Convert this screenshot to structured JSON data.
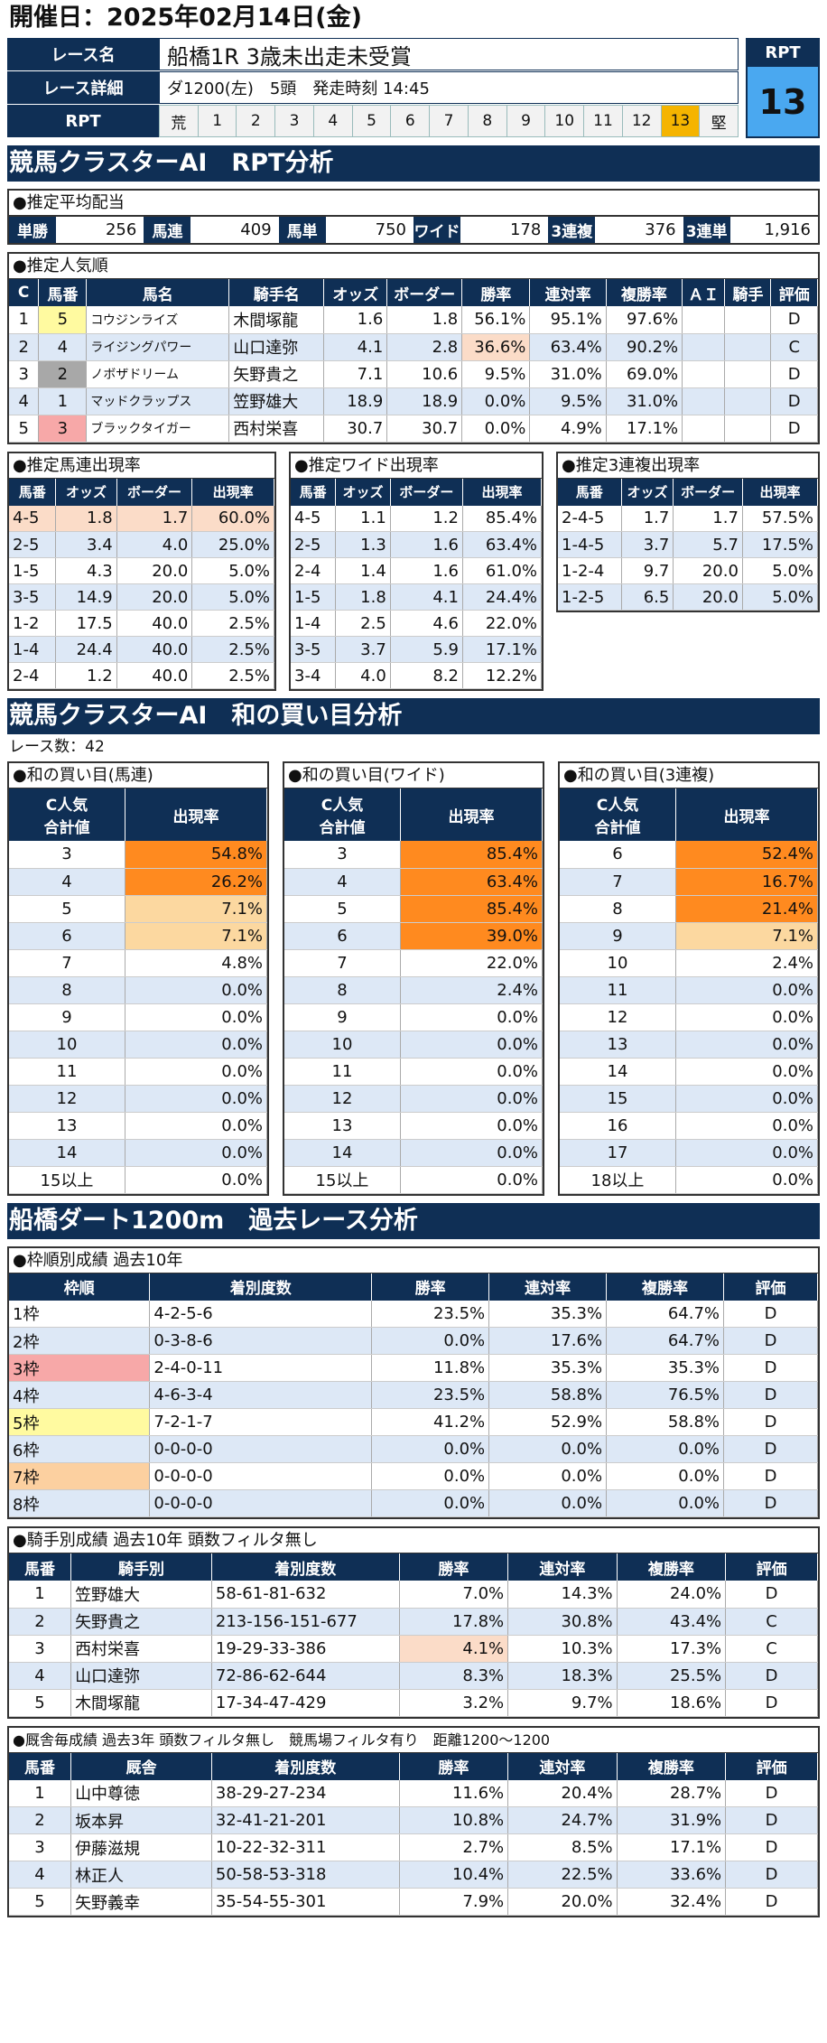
{
  "date": "開催日：2025年02月14日(金)",
  "race": {
    "label_name": "レース名",
    "name": "船橋1R 3歳未出走未受賞",
    "label_detail": "レース詳細",
    "detail": "ダ1200(左)　5頭　発走時刻 14:45",
    "label_rpt": "RPT",
    "scale_left": "荒",
    "scale": [
      "1",
      "2",
      "3",
      "4",
      "5",
      "6",
      "7",
      "8",
      "9",
      "10",
      "11",
      "12",
      "13"
    ],
    "scale_right": "堅",
    "rpt_title": "RPT",
    "rpt_value": "13",
    "rpt_selected": 13
  },
  "sec1": "競馬クラスターAI　RPT分析",
  "payout": {
    "title": "●推定平均配当",
    "items": [
      {
        "l": "単勝",
        "v": "256"
      },
      {
        "l": "馬連",
        "v": "409"
      },
      {
        "l": "馬単",
        "v": "750"
      },
      {
        "l": "ワイド",
        "v": "178"
      },
      {
        "l": "3連複",
        "v": "376"
      },
      {
        "l": "3連単",
        "v": "1,916"
      }
    ]
  },
  "pop": {
    "title": "●推定人気順",
    "headers": [
      "C",
      "馬番",
      "馬名",
      "騎手名",
      "オッズ",
      "ボーダー",
      "勝率",
      "連対率",
      "複勝率",
      "ＡＩ",
      "騎手",
      "評価"
    ],
    "rows": [
      [
        "1",
        "5",
        "コウジンライズ",
        "木間塚龍",
        "1.6",
        "1.8",
        "56.1%",
        "95.1%",
        "97.6%",
        "",
        "",
        "D"
      ],
      [
        "2",
        "4",
        "ライジングパワー",
        "山口達弥",
        "4.1",
        "2.8",
        "36.6%",
        "63.4%",
        "90.2%",
        "",
        "",
        "C"
      ],
      [
        "3",
        "2",
        "ノボザドリーム",
        "矢野貴之",
        "7.1",
        "10.6",
        "9.5%",
        "31.0%",
        "69.0%",
        "",
        "",
        "D"
      ],
      [
        "4",
        "1",
        "マッドクラップス",
        "笠野雄大",
        "18.9",
        "18.9",
        "0.0%",
        "9.5%",
        "31.0%",
        "",
        "",
        "D"
      ],
      [
        "5",
        "3",
        "ブラックタイガー",
        "西村栄喜",
        "30.7",
        "30.7",
        "0.0%",
        "4.9%",
        "17.1%",
        "",
        "",
        "D"
      ]
    ]
  },
  "umaren": {
    "title": "●推定馬連出現率",
    "headers": [
      "馬番",
      "オッズ",
      "ボーダー",
      "出現率"
    ],
    "rows": [
      [
        "4-5",
        "1.8",
        "1.7",
        "60.0%"
      ],
      [
        "2-5",
        "3.4",
        "4.0",
        "25.0%"
      ],
      [
        "1-5",
        "4.3",
        "20.0",
        "5.0%"
      ],
      [
        "3-5",
        "14.9",
        "20.0",
        "5.0%"
      ],
      [
        "1-2",
        "17.5",
        "40.0",
        "2.5%"
      ],
      [
        "1-4",
        "24.4",
        "40.0",
        "2.5%"
      ],
      [
        "2-4",
        "1.2",
        "40.0",
        "2.5%"
      ]
    ]
  },
  "wide": {
    "title": "●推定ワイド出現率",
    "headers": [
      "馬番",
      "オッズ",
      "ボーダー",
      "出現率"
    ],
    "rows": [
      [
        "4-5",
        "1.1",
        "1.2",
        "85.4%"
      ],
      [
        "2-5",
        "1.3",
        "1.6",
        "63.4%"
      ],
      [
        "2-4",
        "1.4",
        "1.6",
        "61.0%"
      ],
      [
        "1-5",
        "1.8",
        "4.1",
        "24.4%"
      ],
      [
        "1-4",
        "2.5",
        "4.6",
        "22.0%"
      ],
      [
        "3-5",
        "3.7",
        "5.9",
        "17.1%"
      ],
      [
        "3-4",
        "4.0",
        "8.2",
        "12.2%"
      ]
    ]
  },
  "trio": {
    "title": "●推定3連複出現率",
    "headers": [
      "馬番",
      "オッズ",
      "ボーダー",
      "出現率"
    ],
    "rows": [
      [
        "2-4-5",
        "1.7",
        "1.7",
        "57.5%"
      ],
      [
        "1-4-5",
        "3.7",
        "5.7",
        "17.5%"
      ],
      [
        "1-2-4",
        "9.7",
        "20.0",
        "5.0%"
      ],
      [
        "1-2-5",
        "6.5",
        "20.0",
        "5.0%"
      ]
    ]
  },
  "sec2": "競馬クラスターAI　和の買い目分析",
  "race_count": "レース数：42",
  "sum1": {
    "title": "●和の買い目(馬連)",
    "h1": "C人気",
    "h2": "合計値",
    "h3": "出現率",
    "rows": [
      [
        "3",
        "54.8%"
      ],
      [
        "4",
        "26.2%"
      ],
      [
        "5",
        "7.1%"
      ],
      [
        "6",
        "7.1%"
      ],
      [
        "7",
        "4.8%"
      ],
      [
        "8",
        "0.0%"
      ],
      [
        "9",
        "0.0%"
      ],
      [
        "10",
        "0.0%"
      ],
      [
        "11",
        "0.0%"
      ],
      [
        "12",
        "0.0%"
      ],
      [
        "13",
        "0.0%"
      ],
      [
        "14",
        "0.0%"
      ],
      [
        "15以上",
        "0.0%"
      ]
    ]
  },
  "sum2": {
    "title": "●和の買い目(ワイド)",
    "h1": "C人気",
    "h2": "合計値",
    "h3": "出現率",
    "rows": [
      [
        "3",
        "85.4%"
      ],
      [
        "4",
        "63.4%"
      ],
      [
        "5",
        "85.4%"
      ],
      [
        "6",
        "39.0%"
      ],
      [
        "7",
        "22.0%"
      ],
      [
        "8",
        "2.4%"
      ],
      [
        "9",
        "0.0%"
      ],
      [
        "10",
        "0.0%"
      ],
      [
        "11",
        "0.0%"
      ],
      [
        "12",
        "0.0%"
      ],
      [
        "13",
        "0.0%"
      ],
      [
        "14",
        "0.0%"
      ],
      [
        "15以上",
        "0.0%"
      ]
    ]
  },
  "sum3": {
    "title": "●和の買い目(3連複)",
    "h1": "C人気",
    "h2": "合計値",
    "h3": "出現率",
    "rows": [
      [
        "6",
        "52.4%"
      ],
      [
        "7",
        "16.7%"
      ],
      [
        "8",
        "21.4%"
      ],
      [
        "9",
        "7.1%"
      ],
      [
        "10",
        "2.4%"
      ],
      [
        "11",
        "0.0%"
      ],
      [
        "12",
        "0.0%"
      ],
      [
        "13",
        "0.0%"
      ],
      [
        "14",
        "0.0%"
      ],
      [
        "15",
        "0.0%"
      ],
      [
        "16",
        "0.0%"
      ],
      [
        "17",
        "0.0%"
      ],
      [
        "18以上",
        "0.0%"
      ]
    ]
  },
  "sec3": "船橋ダート1200m　過去レース分析",
  "frame": {
    "title": "●枠順別成績 過去10年",
    "headers": [
      "枠順",
      "着別度数",
      "勝率",
      "連対率",
      "複勝率",
      "評価"
    ],
    "rows": [
      [
        "1枠",
        "4-2-5-6",
        "23.5%",
        "35.3%",
        "64.7%",
        "D"
      ],
      [
        "2枠",
        "0-3-8-6",
        "0.0%",
        "17.6%",
        "64.7%",
        "D"
      ],
      [
        "3枠",
        "2-4-0-11",
        "11.8%",
        "35.3%",
        "35.3%",
        "D"
      ],
      [
        "4枠",
        "4-6-3-4",
        "23.5%",
        "58.8%",
        "76.5%",
        "D"
      ],
      [
        "5枠",
        "7-2-1-7",
        "41.2%",
        "52.9%",
        "58.8%",
        "D"
      ],
      [
        "6枠",
        "0-0-0-0",
        "0.0%",
        "0.0%",
        "0.0%",
        "D"
      ],
      [
        "7枠",
        "0-0-0-0",
        "0.0%",
        "0.0%",
        "0.0%",
        "D"
      ],
      [
        "8枠",
        "0-0-0-0",
        "0.0%",
        "0.0%",
        "0.0%",
        "D"
      ]
    ]
  },
  "jockey": {
    "title": "●騎手別成績 過去10年 頭数フィルタ無し",
    "headers": [
      "馬番",
      "騎手別",
      "着別度数",
      "勝率",
      "連対率",
      "複勝率",
      "評価"
    ],
    "rows": [
      [
        "1",
        "笠野雄大",
        "58-61-81-632",
        "7.0%",
        "14.3%",
        "24.0%",
        "D"
      ],
      [
        "2",
        "矢野貴之",
        "213-156-151-677",
        "17.8%",
        "30.8%",
        "43.4%",
        "C"
      ],
      [
        "3",
        "西村栄喜",
        "19-29-33-386",
        "4.1%",
        "10.3%",
        "17.3%",
        "C"
      ],
      [
        "4",
        "山口達弥",
        "72-86-62-644",
        "8.3%",
        "18.3%",
        "25.5%",
        "D"
      ],
      [
        "5",
        "木間塚龍",
        "17-34-47-429",
        "3.2%",
        "9.7%",
        "18.6%",
        "D"
      ]
    ]
  },
  "stable": {
    "title": "●厩舎毎成績 過去3年 頭数フィルタ無し　競馬場フィルタ有り　距離1200～1200",
    "headers": [
      "馬番",
      "厩舎",
      "着別度数",
      "勝率",
      "連対率",
      "複勝率",
      "評価"
    ],
    "rows": [
      [
        "1",
        "山中尊徳",
        "38-29-27-234",
        "11.6%",
        "20.4%",
        "28.7%",
        "D"
      ],
      [
        "2",
        "坂本昇",
        "32-41-21-201",
        "10.8%",
        "24.7%",
        "31.9%",
        "D"
      ],
      [
        "3",
        "伊藤滋規",
        "10-22-32-311",
        "2.7%",
        "8.5%",
        "17.1%",
        "D"
      ],
      [
        "4",
        "林正人",
        "50-58-53-318",
        "10.4%",
        "22.5%",
        "33.6%",
        "D"
      ],
      [
        "5",
        "矢野義幸",
        "35-54-55-301",
        "7.9%",
        "20.0%",
        "32.4%",
        "D"
      ]
    ]
  }
}
